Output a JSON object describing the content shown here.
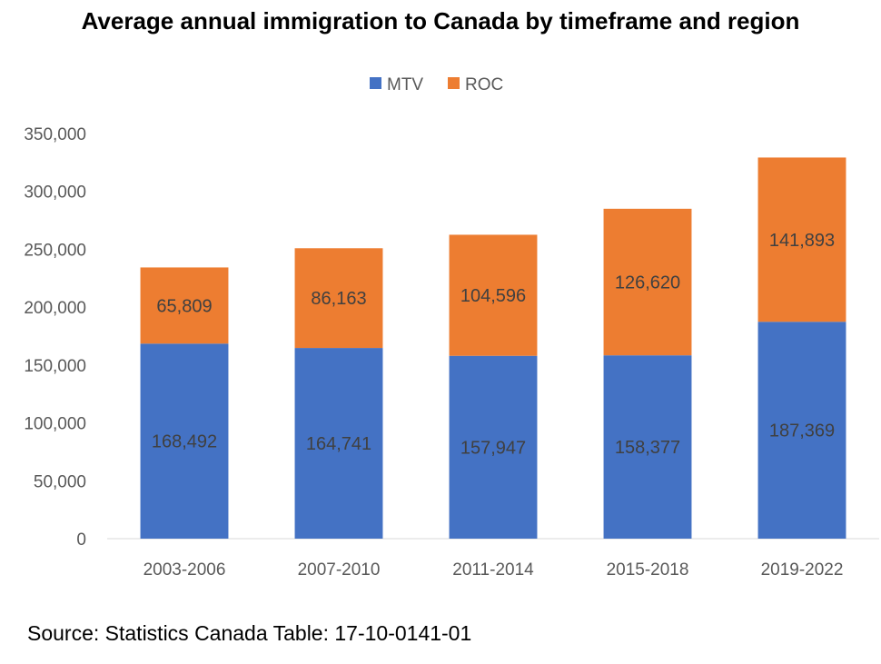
{
  "chart_data": {
    "type": "bar",
    "stacked": true,
    "title": "Average annual immigration to Canada by timeframe and region",
    "categories": [
      "2003-2006",
      "2007-2010",
      "2011-2014",
      "2015-2018",
      "2019-2022"
    ],
    "series": [
      {
        "name": "MTV",
        "color": "#4472C4",
        "values": [
          168492,
          164741,
          157947,
          158377,
          187369
        ],
        "labels": [
          "168,492",
          "164,741",
          "157,947",
          "158,377",
          "187,369"
        ]
      },
      {
        "name": "ROC",
        "color": "#ED7D31",
        "values": [
          65809,
          86163,
          104596,
          126620,
          141893
        ],
        "labels": [
          "65,809",
          "86,163",
          "104,596",
          "126,620",
          "141,893"
        ]
      }
    ],
    "ylim": [
      0,
      350000
    ],
    "yticks": [
      0,
      50000,
      100000,
      150000,
      200000,
      250000,
      300000,
      350000
    ],
    "ytick_labels": [
      "0",
      "50,000",
      "100,000",
      "150,000",
      "200,000",
      "250,000",
      "300,000",
      "350,000"
    ],
    "legend_position": "top-center",
    "grid": false
  },
  "source": "Source: Statistics Canada Table: 17-10-0141-01"
}
